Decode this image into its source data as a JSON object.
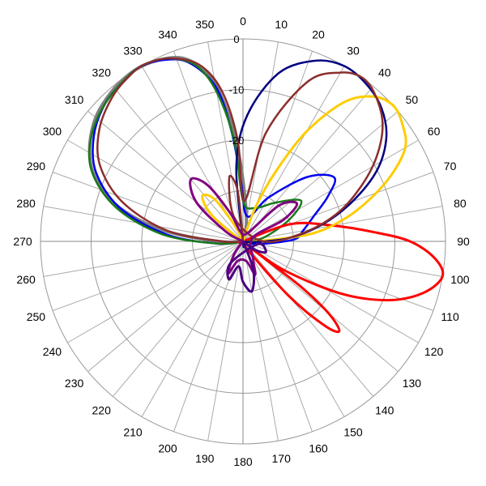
{
  "chart_data": {
    "type": "polar-line",
    "title": "",
    "angle_unit": "degrees",
    "angle_direction": "clockwise",
    "zero_location": "top",
    "angle_ticks": [
      0,
      10,
      20,
      30,
      40,
      50,
      60,
      70,
      80,
      90,
      100,
      110,
      120,
      130,
      140,
      150,
      160,
      170,
      180,
      190,
      200,
      210,
      220,
      230,
      240,
      250,
      260,
      270,
      280,
      290,
      300,
      310,
      320,
      330,
      340,
      350
    ],
    "angle_tick_labels": [
      "0",
      "10",
      "20",
      "30",
      "40",
      "50",
      "60",
      "70",
      "80",
      "90",
      "100",
      "110",
      "120",
      "130",
      "140",
      "150",
      "160",
      "170",
      "180",
      "190",
      "200",
      "210",
      "220",
      "230",
      "240",
      "250",
      "260",
      "270",
      "280",
      "290",
      "300",
      "310",
      "320",
      "330",
      "340",
      "350"
    ],
    "radial_axis": {
      "range_db": [
        -40,
        0
      ],
      "ticks_db": [
        0,
        -10,
        -20,
        -30
      ],
      "tick_labels": [
        "0",
        "-10",
        "-20",
        ""
      ],
      "grid": true
    },
    "legend": "none",
    "series": [
      {
        "color": "#808080",
        "width": 4,
        "points": [
          [
            270,
            -35
          ],
          [
            278,
            -24
          ],
          [
            285,
            -15
          ],
          [
            292,
            -9
          ],
          [
            300,
            -5
          ],
          [
            310,
            -2
          ],
          [
            320,
            -0.5
          ],
          [
            328,
            0
          ],
          [
            335,
            -0.5
          ],
          [
            342,
            -2
          ],
          [
            348,
            -6
          ],
          [
            352,
            -12
          ],
          [
            356,
            -20
          ],
          [
            0,
            -28
          ],
          [
            10,
            -36
          ]
        ]
      },
      {
        "color": "#0000ee",
        "width": 2.5,
        "points": [
          [
            265,
            -35
          ],
          [
            275,
            -25
          ],
          [
            285,
            -15
          ],
          [
            295,
            -8
          ],
          [
            305,
            -4
          ],
          [
            315,
            -1.5
          ],
          [
            325,
            -0.3
          ],
          [
            330,
            0
          ],
          [
            336,
            -0.8
          ],
          [
            343,
            -3
          ],
          [
            350,
            -9
          ],
          [
            354,
            -18
          ],
          [
            358,
            -28
          ],
          [
            10,
            -35
          ],
          [
            30,
            -30
          ],
          [
            45,
            -22
          ],
          [
            55,
            -18
          ],
          [
            62,
            -21
          ],
          [
            70,
            -25
          ],
          [
            80,
            -28
          ],
          [
            88,
            -30
          ],
          [
            100,
            -37
          ]
        ]
      },
      {
        "color": "#1a7a1a",
        "width": 2.5,
        "points": [
          [
            265,
            -35
          ],
          [
            275,
            -24
          ],
          [
            285,
            -14
          ],
          [
            295,
            -7
          ],
          [
            305,
            -3.5
          ],
          [
            315,
            -1.5
          ],
          [
            325,
            -0.3
          ],
          [
            331,
            0
          ],
          [
            338,
            -1
          ],
          [
            345,
            -4
          ],
          [
            350,
            -10
          ],
          [
            355,
            -20
          ],
          [
            0,
            -32
          ],
          [
            20,
            -33
          ],
          [
            40,
            -30
          ],
          [
            55,
            -26
          ],
          [
            65,
            -30
          ],
          [
            80,
            -36
          ]
        ]
      },
      {
        "color": "#ff0000",
        "width": 3,
        "points": [
          [
            55,
            -40
          ],
          [
            70,
            -30
          ],
          [
            80,
            -22
          ],
          [
            86,
            -14
          ],
          [
            90,
            -7
          ],
          [
            95,
            -2
          ],
          [
            100,
            0
          ],
          [
            106,
            -3
          ],
          [
            112,
            -9
          ],
          [
            118,
            -18
          ],
          [
            125,
            -30
          ],
          [
            130,
            -38
          ],
          [
            128,
            -26
          ],
          [
            130,
            -18
          ],
          [
            133,
            -14
          ],
          [
            136,
            -17
          ],
          [
            140,
            -26
          ],
          [
            150,
            -38
          ]
        ]
      },
      {
        "color": "#ffcc00",
        "width": 3,
        "points": [
          [
            10,
            -40
          ],
          [
            20,
            -33
          ],
          [
            25,
            -25
          ],
          [
            30,
            -15
          ],
          [
            36,
            -6
          ],
          [
            42,
            -1.5
          ],
          [
            48,
            0
          ],
          [
            54,
            -1
          ],
          [
            60,
            -3
          ],
          [
            66,
            -8
          ],
          [
            72,
            -14
          ],
          [
            78,
            -20
          ],
          [
            84,
            -27
          ],
          [
            92,
            -38
          ],
          [
            300,
            -40
          ],
          [
            310,
            -32
          ],
          [
            318,
            -28
          ],
          [
            326,
            -30
          ],
          [
            334,
            -37
          ]
        ]
      },
      {
        "color": "#000080",
        "width": 2.5,
        "points": [
          [
            350,
            -40
          ],
          [
            355,
            -25
          ],
          [
            2,
            -15
          ],
          [
            12,
            -6
          ],
          [
            22,
            -1.5
          ],
          [
            30,
            0
          ],
          [
            38,
            -0.5
          ],
          [
            46,
            -2
          ],
          [
            54,
            -5
          ],
          [
            62,
            -10
          ],
          [
            70,
            -17
          ],
          [
            78,
            -24
          ],
          [
            86,
            -31
          ],
          [
            94,
            -38
          ]
        ]
      },
      {
        "color": "#8b2e2e",
        "width": 2.5,
        "points": [
          [
            270,
            -36
          ],
          [
            278,
            -25
          ],
          [
            288,
            -15
          ],
          [
            298,
            -8
          ],
          [
            308,
            -4
          ],
          [
            318,
            -1.5
          ],
          [
            326,
            -0.3
          ],
          [
            331,
            0
          ],
          [
            338,
            -1
          ],
          [
            346,
            -4
          ],
          [
            352,
            -10
          ],
          [
            357,
            -20
          ],
          [
            2,
            -32
          ],
          [
            12,
            -18
          ],
          [
            22,
            -6
          ],
          [
            30,
            -1.5
          ],
          [
            36,
            0
          ],
          [
            42,
            -1
          ],
          [
            50,
            -4
          ],
          [
            58,
            -9
          ],
          [
            66,
            -15
          ],
          [
            74,
            -21
          ],
          [
            82,
            -28
          ],
          [
            90,
            -36
          ],
          [
            340,
            -35
          ],
          [
            348,
            -27
          ],
          [
            354,
            -30
          ]
        ]
      },
      {
        "color": "#800080",
        "width": 3,
        "points": [
          [
            300,
            -36
          ],
          [
            310,
            -28
          ],
          [
            320,
            -24
          ],
          [
            328,
            -27
          ],
          [
            336,
            -34
          ],
          [
            345,
            -38
          ],
          [
            30,
            -38
          ],
          [
            45,
            -30
          ],
          [
            55,
            -27
          ],
          [
            62,
            -31
          ],
          [
            70,
            -38
          ],
          [
            150,
            -36
          ],
          [
            160,
            -33
          ],
          [
            170,
            -36
          ],
          [
            195,
            -36
          ],
          [
            205,
            -33
          ],
          [
            215,
            -37
          ]
        ]
      },
      {
        "color": "#4b0082",
        "width": 3,
        "points": [
          [
            160,
            -34
          ],
          [
            170,
            -30
          ],
          [
            180,
            -32
          ],
          [
            190,
            -35
          ],
          [
            200,
            -32
          ],
          [
            210,
            -35
          ],
          [
            100,
            -37
          ],
          [
            115,
            -35
          ],
          [
            125,
            -37
          ]
        ]
      }
    ]
  }
}
